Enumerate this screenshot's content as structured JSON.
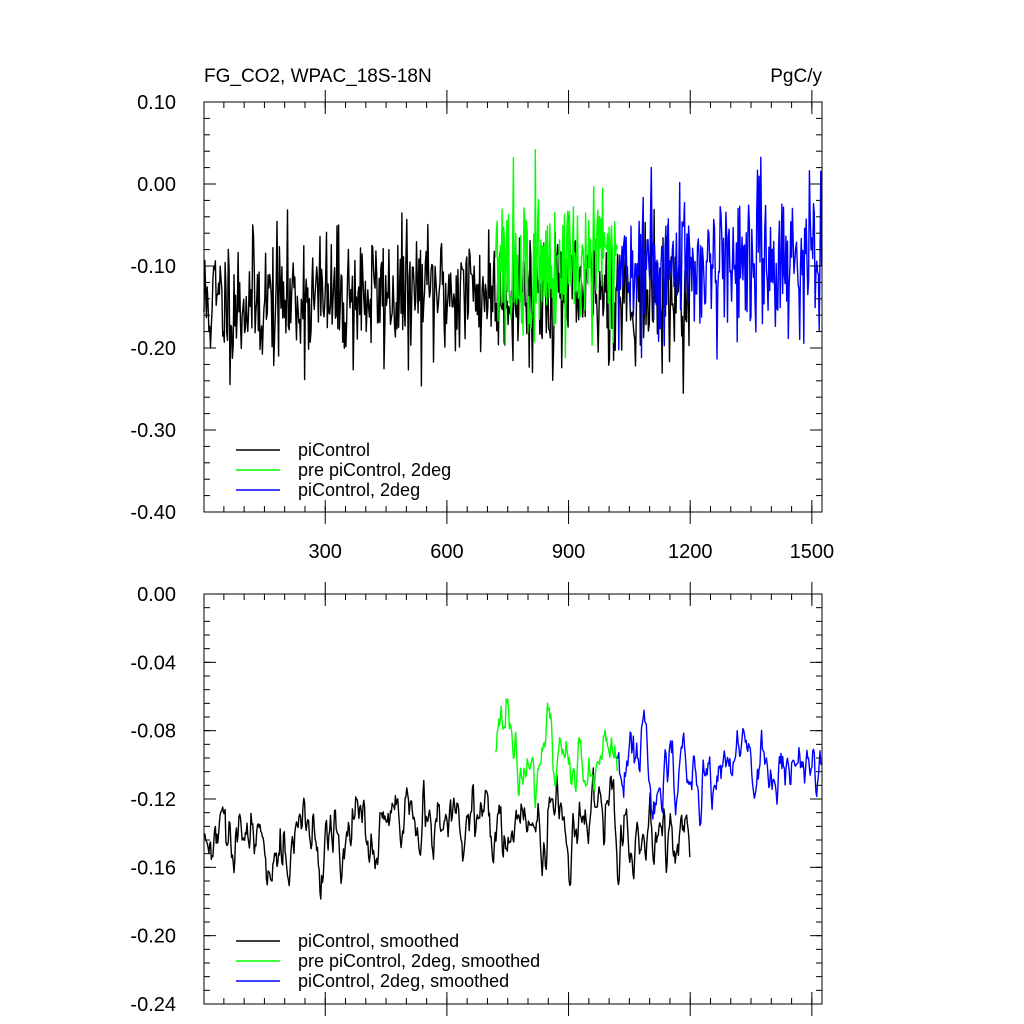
{
  "chart_data": [
    {
      "type": "line",
      "title": "FG_CO2, WPAC_18S-18N",
      "units": "PgC/y",
      "xlabel": "",
      "ylabel": "",
      "xlim": [
        1,
        1525
      ],
      "ylim": [
        -0.4,
        0.1
      ],
      "x_ticks": [
        300,
        600,
        900,
        1200,
        1500
      ],
      "y_ticks": [
        0.1,
        0.0,
        -0.1,
        -0.2,
        -0.3,
        -0.4
      ],
      "y_tick_labels": [
        "0.10",
        "0.00",
        "-0.10",
        "-0.20",
        "-0.30",
        "-0.40"
      ],
      "grid": false,
      "legend_position": "bottom-left",
      "series": [
        {
          "name": "piControl",
          "color": "#000000",
          "x_range": [
            1,
            1200
          ],
          "mean_trend": [
            [
              1,
              -0.145
            ],
            [
              700,
              -0.13
            ],
            [
              1200,
              -0.135
            ]
          ],
          "spread": 0.04
        },
        {
          "name": "pre piControl, 2deg",
          "color": "#00ff00",
          "x_range": [
            720,
            1020
          ],
          "mean_trend": [
            [
              720,
              -0.11
            ],
            [
              1020,
              -0.09
            ]
          ],
          "spread": 0.05
        },
        {
          "name": "piControl, 2deg",
          "color": "#0000ff",
          "x_range": [
            1020,
            1525
          ],
          "mean_trend": [
            [
              1020,
              -0.1
            ],
            [
              1525,
              -0.09
            ]
          ],
          "spread": 0.045
        }
      ]
    },
    {
      "type": "line",
      "title": "",
      "xlabel": "",
      "ylabel": "",
      "xlim": [
        1,
        1525
      ],
      "ylim": [
        -0.24,
        0.0
      ],
      "x_ticks": [
        300,
        600,
        900,
        1200,
        1500
      ],
      "y_ticks": [
        0.0,
        -0.04,
        -0.08,
        -0.12,
        -0.16,
        -0.2,
        -0.24
      ],
      "y_tick_labels": [
        "0.00",
        "-0.04",
        "-0.08",
        "-0.12",
        "-0.16",
        "-0.20",
        "-0.24"
      ],
      "grid": false,
      "legend_position": "bottom-left",
      "series": [
        {
          "name": "piControl, smoothed",
          "color": "#000000",
          "x_range": [
            1,
            1200
          ],
          "mean_trend": [
            [
              1,
              -0.15
            ],
            [
              700,
              -0.135
            ],
            [
              1200,
              -0.14
            ]
          ],
          "spread": 0.022
        },
        {
          "name": "pre piControl, 2deg, smoothed",
          "color": "#00ff00",
          "x_range": [
            720,
            1020
          ],
          "mean_trend": [
            [
              720,
              -0.1
            ],
            [
              1020,
              -0.095
            ]
          ],
          "spread": 0.022
        },
        {
          "name": "piControl, 2deg, smoothed",
          "color": "#0000ff",
          "x_range": [
            1020,
            1525
          ],
          "mean_trend": [
            [
              1020,
              -0.105
            ],
            [
              1525,
              -0.095
            ]
          ],
          "spread": 0.022
        }
      ]
    }
  ]
}
